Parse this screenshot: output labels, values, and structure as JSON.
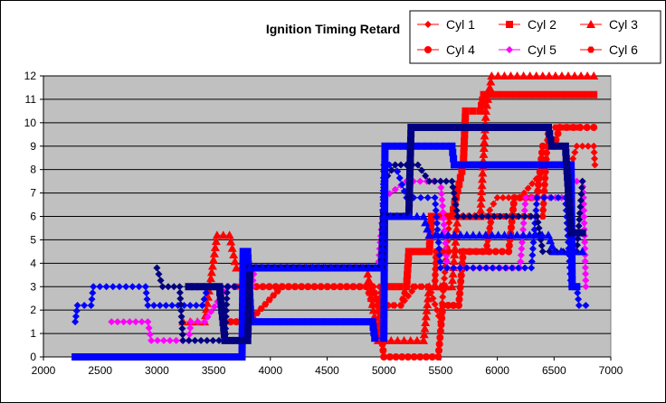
{
  "chart_data": {
    "type": "line",
    "title": "Ignition Timing Retard",
    "xlabel": "",
    "ylabel": "",
    "xlim": [
      2000,
      7000
    ],
    "ylim": [
      0,
      12
    ],
    "x_ticks": [
      2000,
      2500,
      3000,
      3500,
      4000,
      4500,
      5000,
      5500,
      6000,
      6500,
      7000
    ],
    "y_ticks": [
      0,
      1,
      2,
      3,
      4,
      5,
      6,
      7,
      8,
      9,
      10,
      11,
      12
    ],
    "grid": "horizontal",
    "legend_position": "top-right",
    "plot_background": "#c0c0c0",
    "series": [
      {
        "name": "Cyl 1",
        "color": "#ff0000",
        "marker": "diamond",
        "points": [
          [
            4860,
            3.0
          ],
          [
            4960,
            3.0
          ],
          [
            4990,
            2.2
          ],
          [
            5150,
            2.2
          ],
          [
            5280,
            3.0
          ],
          [
            5400,
            3.0
          ],
          [
            5500,
            1.5
          ],
          [
            5580,
            6.0
          ],
          [
            5900,
            6.0
          ],
          [
            6000,
            6.8
          ],
          [
            6200,
            6.8
          ],
          [
            6450,
            8.2
          ],
          [
            6650,
            8.2
          ],
          [
            6700,
            9.0
          ],
          [
            6850,
            9.0
          ],
          [
            6860,
            8.2
          ]
        ]
      },
      {
        "name": "Cyl 2",
        "color": "#ff0000",
        "marker": "square",
        "points": [
          [
            4960,
            2.2
          ],
          [
            5010,
            3.0
          ],
          [
            5200,
            3.0
          ],
          [
            5220,
            4.5
          ],
          [
            5400,
            4.5
          ],
          [
            5420,
            6.0
          ],
          [
            5600,
            6.0
          ],
          [
            5700,
            8.2
          ],
          [
            5720,
            10.5
          ],
          [
            5850,
            10.5
          ],
          [
            5880,
            11.2
          ],
          [
            6850,
            11.2
          ]
        ]
      },
      {
        "name": "Cyl 3",
        "color": "#ff0000",
        "marker": "triangle",
        "points": [
          [
            3230,
            1.5
          ],
          [
            3420,
            1.5
          ],
          [
            3530,
            5.2
          ],
          [
            3640,
            5.2
          ],
          [
            3700,
            3.8
          ],
          [
            4850,
            3.8
          ],
          [
            4950,
            0.7
          ],
          [
            5350,
            0.7
          ],
          [
            5400,
            3.0
          ],
          [
            5600,
            3.0
          ],
          [
            5650,
            6.0
          ],
          [
            5850,
            6.0
          ],
          [
            5900,
            10.5
          ],
          [
            5950,
            12.0
          ],
          [
            6850,
            12.0
          ]
        ]
      },
      {
        "name": "Cyl 4",
        "color": "#ff0000",
        "marker": "circle",
        "points": [
          [
            3600,
            1.5
          ],
          [
            3800,
            1.5
          ],
          [
            3820,
            3.0
          ],
          [
            4900,
            3.0
          ],
          [
            4950,
            2.2
          ],
          [
            5000,
            0.0
          ],
          [
            5480,
            0.0
          ],
          [
            5520,
            2.2
          ],
          [
            5660,
            2.2
          ],
          [
            5700,
            4.5
          ],
          [
            6100,
            4.5
          ],
          [
            6150,
            6.8
          ],
          [
            6350,
            6.8
          ],
          [
            6400,
            9.0
          ],
          [
            6500,
            9.0
          ],
          [
            6550,
            9.8
          ],
          [
            6850,
            9.8
          ]
        ]
      },
      {
        "name": "Cyl 5",
        "color": "#ff00ff",
        "marker": "diamond",
        "points": [
          [
            2600,
            1.5
          ],
          [
            2920,
            1.5
          ],
          [
            2950,
            0.7
          ],
          [
            3280,
            0.7
          ],
          [
            3300,
            1.5
          ],
          [
            3420,
            1.5
          ],
          [
            3620,
            3.0
          ],
          [
            3840,
            3.0
          ],
          [
            3860,
            3.8
          ],
          [
            4950,
            3.8
          ],
          [
            5000,
            6.8
          ],
          [
            5200,
            7.5
          ],
          [
            5500,
            7.5
          ],
          [
            5560,
            3.8
          ],
          [
            6200,
            3.8
          ],
          [
            6250,
            6.8
          ],
          [
            6620,
            6.8
          ],
          [
            6650,
            7.5
          ],
          [
            6750,
            7.5
          ],
          [
            6760,
            6.8
          ],
          [
            6780,
            3.0
          ]
        ]
      },
      {
        "name": "Cyl 6",
        "color": "#ff0000",
        "marker": "hexagon",
        "points": [
          [
            3700,
            3.0
          ],
          [
            3800,
            3.0
          ],
          [
            3810,
            1.5
          ],
          [
            4100,
            3.0
          ],
          [
            4850,
            3.0
          ],
          [
            4900,
            2.2
          ],
          [
            5150,
            2.2
          ],
          [
            5200,
            3.0
          ],
          [
            5450,
            3.0
          ],
          [
            5460,
            4.5
          ],
          [
            5900,
            4.5
          ],
          [
            5950,
            6.0
          ],
          [
            6400,
            6.0
          ],
          [
            6450,
            9.8
          ],
          [
            6700,
            9.8
          ]
        ]
      },
      {
        "name": "",
        "color": "#0000ff",
        "marker": "diamond",
        "points": [
          [
            2280,
            1.5
          ],
          [
            2300,
            2.2
          ],
          [
            2420,
            2.2
          ],
          [
            2440,
            3.0
          ],
          [
            2900,
            3.0
          ],
          [
            2920,
            2.2
          ],
          [
            3400,
            2.2
          ],
          [
            3450,
            3.0
          ],
          [
            3750,
            3.0
          ],
          [
            3780,
            3.8
          ],
          [
            4980,
            3.8
          ],
          [
            5000,
            8.2
          ],
          [
            5100,
            8.2
          ],
          [
            5200,
            6.8
          ],
          [
            5450,
            6.8
          ],
          [
            5500,
            3.8
          ],
          [
            6300,
            3.8
          ],
          [
            6350,
            6.8
          ],
          [
            6600,
            6.8
          ],
          [
            6650,
            3.0
          ],
          [
            6700,
            3.0
          ],
          [
            6720,
            2.2
          ],
          [
            6780,
            2.2
          ]
        ]
      },
      {
        "name": "",
        "color": "#000080",
        "marker": "diamond",
        "points": [
          [
            3000,
            3.8
          ],
          [
            3050,
            3.0
          ],
          [
            3200,
            3.0
          ],
          [
            3230,
            0.7
          ],
          [
            3600,
            0.7
          ],
          [
            3620,
            3.0
          ],
          [
            3800,
            3.0
          ],
          [
            3830,
            3.8
          ],
          [
            4980,
            3.8
          ],
          [
            5000,
            7.5
          ],
          [
            5100,
            8.2
          ],
          [
            5300,
            8.2
          ],
          [
            5400,
            7.5
          ],
          [
            5600,
            7.5
          ],
          [
            5650,
            6.0
          ],
          [
            6350,
            6.0
          ],
          [
            6400,
            4.5
          ],
          [
            6700,
            4.5
          ],
          [
            6750,
            7.5
          ]
        ]
      },
      {
        "name": "",
        "color": "#0000ff",
        "marker": "square",
        "points": [
          [
            2280,
            0.0
          ],
          [
            3750,
            0.0
          ],
          [
            3760,
            4.5
          ],
          [
            3800,
            4.5
          ],
          [
            3830,
            1.5
          ],
          [
            4900,
            1.5
          ],
          [
            4920,
            0.8
          ],
          [
            5000,
            0.8
          ],
          [
            5010,
            9.0
          ],
          [
            5600,
            9.0
          ],
          [
            5620,
            8.2
          ],
          [
            6650,
            8.2
          ],
          [
            6660,
            3.0
          ],
          [
            6700,
            3.0
          ]
        ]
      },
      {
        "name": "",
        "color": "#000080",
        "marker": "square",
        "points": [
          [
            3280,
            3.0
          ],
          [
            3550,
            3.0
          ],
          [
            3600,
            0.7
          ],
          [
            3800,
            0.7
          ],
          [
            3820,
            3.8
          ],
          [
            4980,
            3.8
          ],
          [
            5000,
            6.0
          ],
          [
            5220,
            6.0
          ],
          [
            5240,
            9.8
          ],
          [
            6450,
            9.8
          ],
          [
            6480,
            9.0
          ],
          [
            6600,
            9.0
          ],
          [
            6650,
            5.3
          ],
          [
            6750,
            5.3
          ]
        ]
      },
      {
        "name": "",
        "color": "#0000ff",
        "marker": "triangle",
        "points": [
          [
            3820,
            3.8
          ],
          [
            4980,
            3.8
          ],
          [
            5000,
            6.0
          ],
          [
            5350,
            6.0
          ],
          [
            5400,
            5.2
          ],
          [
            6450,
            5.2
          ],
          [
            6500,
            4.5
          ],
          [
            6750,
            4.5
          ]
        ]
      }
    ]
  }
}
